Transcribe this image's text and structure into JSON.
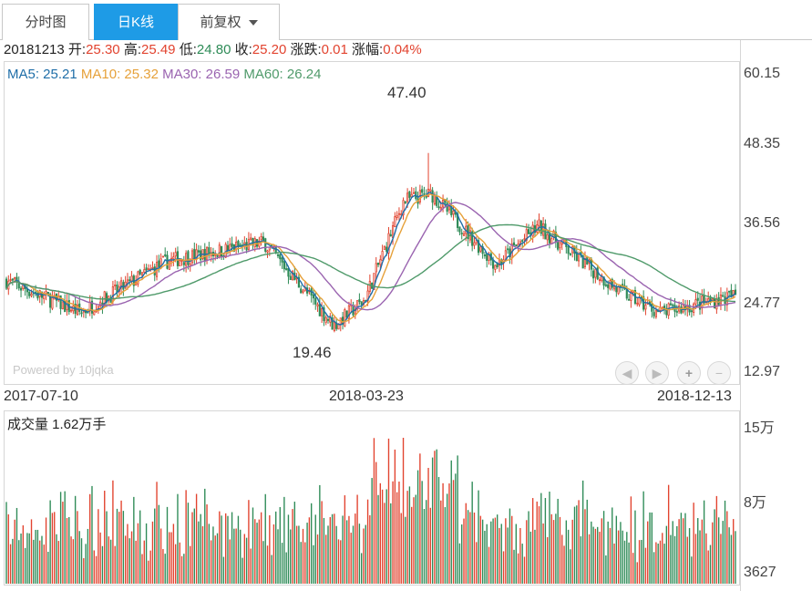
{
  "tabs": [
    {
      "label": "分时图",
      "active": false
    },
    {
      "label": "日K线",
      "active": true
    },
    {
      "label": "前复权",
      "active": false,
      "dropdown": true
    }
  ],
  "info": {
    "date": "20181213",
    "open_label": "开:",
    "open": "25.30",
    "high_label": "高:",
    "high": "25.49",
    "low_label": "低:",
    "low": "24.80",
    "close_label": "收:",
    "close": "25.20",
    "change_label": "涨跌:",
    "change": "0.01",
    "pct_label": "涨幅:",
    "pct": "0.04%"
  },
  "ma": {
    "ma5": "MA5: 25.21",
    "ma10": "MA10: 25.32",
    "ma30": "MA30: 26.59",
    "ma60": "MA60: 26.24"
  },
  "price_axis": [
    "60.15",
    "48.35",
    "36.56",
    "24.77",
    "12.97"
  ],
  "date_axis": [
    "2017-07-10",
    "2018-03-23",
    "2018-12-13"
  ],
  "extremes": {
    "high": "47.40",
    "low": "19.46"
  },
  "watermark": "Powered by 10jqka",
  "volume": {
    "title": "成交量 1.62万手",
    "axis": [
      "15万",
      "8万",
      "3627"
    ]
  },
  "controls": [
    "◀",
    "▶",
    "+",
    "−"
  ],
  "colors": {
    "up": "#e2432f",
    "down": "#2e8b57",
    "active_tab": "#1e9be6",
    "ma5": "#1f6ea8",
    "ma10": "#e6a13a",
    "ma30": "#9a64b0",
    "ma60": "#4f9a6a"
  },
  "chart_data": {
    "type": "candlestick",
    "ylim": [
      12.97,
      60.15
    ],
    "x_range": [
      "2017-07-10",
      "2018-12-13"
    ],
    "key_points": [
      {
        "date": "2017-07-10",
        "close": 27.5
      },
      {
        "date": "2017-09-01",
        "close": 22.5
      },
      {
        "date": "2017-11-01",
        "close": 30.5
      },
      {
        "date": "2018-01-10",
        "close": 33.5
      },
      {
        "date": "2018-03-01",
        "close": 20.5
      },
      {
        "date": "2018-03-23",
        "close": 24.5
      },
      {
        "date": "2018-04-20",
        "close": 40.0
      },
      {
        "date": "2018-05-10",
        "close": 41.0
      },
      {
        "date": "2018-06-25",
        "close": 30.0
      },
      {
        "date": "2018-07-25",
        "close": 36.0
      },
      {
        "date": "2018-09-20",
        "close": 26.0
      },
      {
        "date": "2018-10-20",
        "close": 22.5
      },
      {
        "date": "2018-12-13",
        "close": 25.2
      }
    ],
    "extreme_high": 47.4,
    "extreme_low": 19.46,
    "volume_ylim": [
      3627,
      150000
    ]
  }
}
